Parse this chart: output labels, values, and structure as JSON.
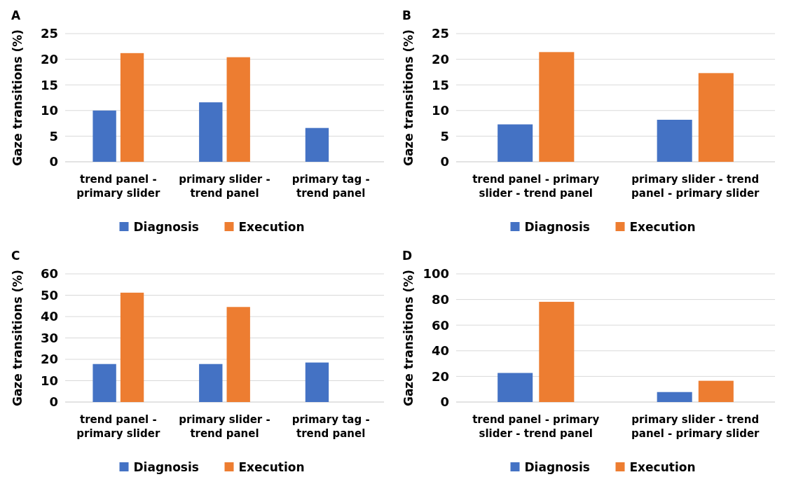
{
  "chart_data": [
    {
      "type": "bar",
      "title": "A",
      "ylabel": "Gaze transitions (%)",
      "categories": [
        "trend panel - primary slider",
        "primary slider - trend panel",
        "primary tag - trend panel"
      ],
      "series": [
        {
          "name": "Diagnosis",
          "color": "#4472c4",
          "values": [
            10,
            11.6,
            6.6
          ]
        },
        {
          "name": "Execution",
          "color": "#ed7d31",
          "values": [
            21.2,
            20.4,
            null
          ]
        }
      ],
      "ylim": [
        0,
        25
      ],
      "yticks": [
        0,
        5,
        10,
        15,
        20,
        25
      ],
      "grid": "y",
      "legend": "bottom"
    },
    {
      "type": "bar",
      "title": "B",
      "ylabel": "Gaze transitions (%)",
      "categories": [
        "trend panel - primary slider - trend panel",
        "primary slider - trend panel - primary slider"
      ],
      "series": [
        {
          "name": "Diagnosis",
          "color": "#4472c4",
          "values": [
            7.3,
            8.2
          ]
        },
        {
          "name": "Execution",
          "color": "#ed7d31",
          "values": [
            21.4,
            17.3
          ]
        }
      ],
      "ylim": [
        0,
        25
      ],
      "yticks": [
        0,
        5,
        10,
        15,
        20,
        25
      ],
      "grid": "y",
      "legend": "bottom"
    },
    {
      "type": "bar",
      "title": "C",
      "ylabel": "Gaze transitions (%)",
      "categories": [
        "trend panel - primary slider",
        "primary slider - trend panel",
        "primary tag - trend panel"
      ],
      "series": [
        {
          "name": "Diagnosis",
          "color": "#4472c4",
          "values": [
            17.8,
            17.8,
            18.5
          ]
        },
        {
          "name": "Execution",
          "color": "#ed7d31",
          "values": [
            51.2,
            44.5,
            null
          ]
        }
      ],
      "ylim": [
        0,
        60
      ],
      "yticks": [
        0,
        10,
        20,
        30,
        40,
        50,
        60
      ],
      "grid": "y",
      "legend": "bottom"
    },
    {
      "type": "bar",
      "title": "D",
      "ylabel": "Gaze transitions (%)",
      "categories": [
        "trend panel - primary slider - trend panel",
        "primary slider - trend panel - primary slider"
      ],
      "series": [
        {
          "name": "Diagnosis",
          "color": "#4472c4",
          "values": [
            22.7,
            7.8
          ]
        },
        {
          "name": "Execution",
          "color": "#ed7d31",
          "values": [
            78.2,
            16.6
          ]
        }
      ],
      "ylim": [
        0,
        100
      ],
      "yticks": [
        0,
        20,
        40,
        60,
        80,
        100
      ],
      "grid": "y",
      "legend": "bottom"
    }
  ]
}
